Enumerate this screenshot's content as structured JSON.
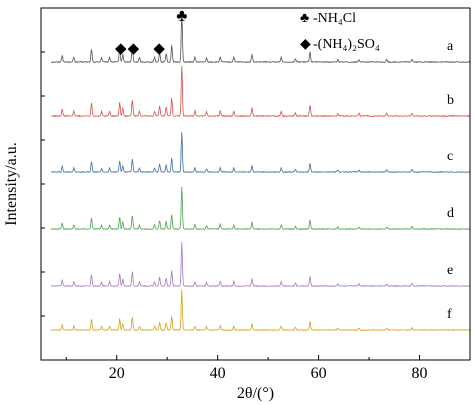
{
  "chart_data": {
    "type": "line",
    "xlabel": "2θ/(°)",
    "ylabel": "Intensity/a.u.",
    "xlim": [
      5,
      90
    ],
    "x_ticks": [
      20,
      40,
      60,
      80
    ],
    "y_ticks_labeled": false,
    "grid": false,
    "legend": {
      "placement": "top-right",
      "entries": [
        {
          "symbol": "♣",
          "label": "-NH₄Cl"
        },
        {
          "symbol": "◆",
          "label": "-(NH₄)₂SO₄"
        }
      ]
    },
    "phase_markers": [
      {
        "symbol": "◆",
        "x": 20.8
      },
      {
        "symbol": "◆",
        "x": 23.3
      },
      {
        "symbol": "◆",
        "x": 28.4
      },
      {
        "symbol": "♣",
        "x": 32.9
      }
    ],
    "series": [
      {
        "name": "a",
        "color": "#555555"
      },
      {
        "name": "b",
        "color": "#d9534f"
      },
      {
        "name": "c",
        "color": "#3f6fa8"
      },
      {
        "name": "d",
        "color": "#4fa24f"
      },
      {
        "name": "e",
        "color": "#a67bc0"
      },
      {
        "name": "f",
        "color": "#d4a21f"
      }
    ],
    "peaks": [
      {
        "x": 9.2,
        "h": 0.14
      },
      {
        "x": 11.5,
        "h": 0.1
      },
      {
        "x": 15.0,
        "h": 0.26
      },
      {
        "x": 17.0,
        "h": 0.09
      },
      {
        "x": 18.6,
        "h": 0.1
      },
      {
        "x": 20.6,
        "h": 0.28
      },
      {
        "x": 21.2,
        "h": 0.16
      },
      {
        "x": 23.1,
        "h": 0.32
      },
      {
        "x": 24.5,
        "h": 0.09
      },
      {
        "x": 27.5,
        "h": 0.1
      },
      {
        "x": 28.5,
        "h": 0.2
      },
      {
        "x": 29.8,
        "h": 0.18
      },
      {
        "x": 30.9,
        "h": 0.35
      },
      {
        "x": 32.9,
        "h": 1.0
      },
      {
        "x": 35.5,
        "h": 0.1
      },
      {
        "x": 37.8,
        "h": 0.08
      },
      {
        "x": 40.5,
        "h": 0.11
      },
      {
        "x": 43.2,
        "h": 0.1
      },
      {
        "x": 46.8,
        "h": 0.16
      },
      {
        "x": 52.6,
        "h": 0.1
      },
      {
        "x": 55.4,
        "h": 0.07
      },
      {
        "x": 58.3,
        "h": 0.22
      },
      {
        "x": 63.8,
        "h": 0.05
      },
      {
        "x": 68.0,
        "h": 0.05
      },
      {
        "x": 73.5,
        "h": 0.05
      },
      {
        "x": 78.5,
        "h": 0.06
      }
    ]
  }
}
